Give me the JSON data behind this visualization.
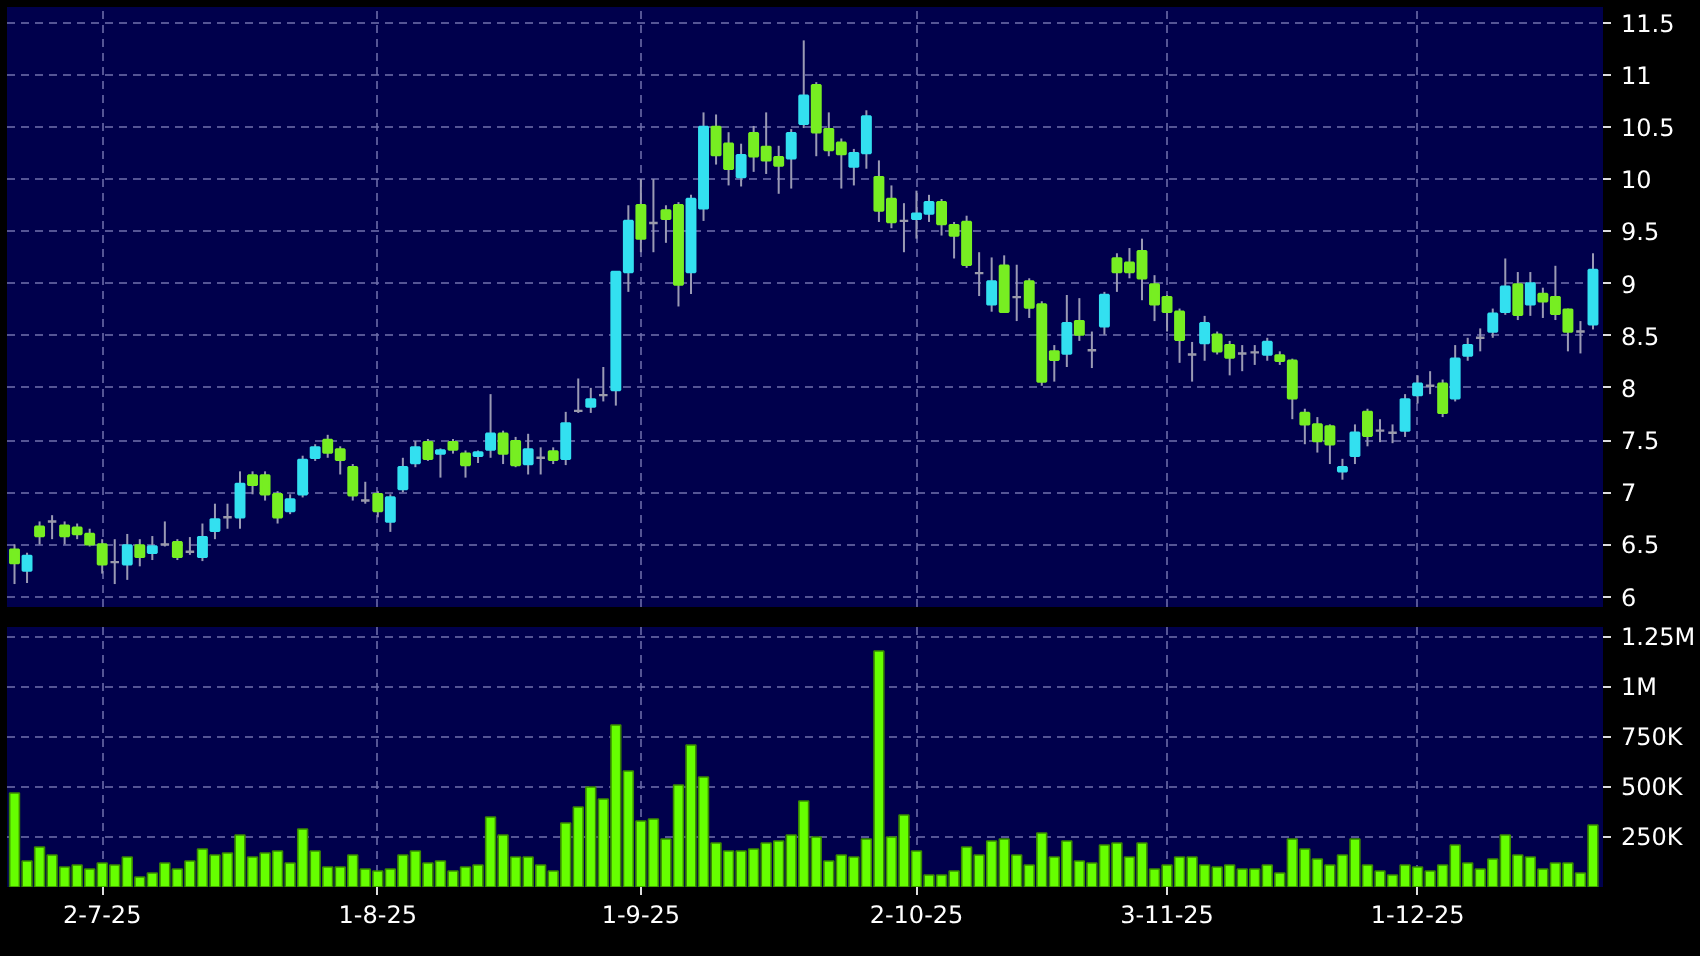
{
  "chart_data": [
    {
      "type": "candlestick",
      "categories": [
        null,
        null,
        null,
        null,
        null,
        null,
        null,
        null,
        null,
        null,
        null,
        null,
        null,
        null,
        null,
        null,
        null,
        null,
        null,
        null,
        null,
        null,
        null,
        null,
        null,
        null,
        null,
        null,
        null,
        null,
        null,
        null,
        null,
        null,
        null,
        null,
        null,
        null,
        null,
        null,
        null,
        null,
        null,
        null,
        null,
        null,
        null,
        null,
        null,
        null,
        null,
        null,
        null,
        null,
        null,
        null,
        null,
        null,
        null,
        null,
        null,
        null,
        null,
        null,
        null,
        null,
        null,
        null,
        null,
        null,
        null,
        null,
        null,
        null,
        null,
        null,
        null,
        null,
        null,
        null,
        null,
        null,
        null,
        null,
        null,
        null,
        null,
        null,
        null,
        null,
        null,
        null,
        null,
        null,
        null,
        null,
        null,
        null,
        null,
        null,
        null,
        null,
        null,
        null,
        null,
        null,
        null,
        null,
        null,
        null,
        null,
        null,
        null,
        null,
        null,
        null,
        null,
        null,
        null,
        null,
        null,
        null,
        null,
        null,
        null,
        null,
        null
      ],
      "ohlc": [
        [
          6.45,
          6.5,
          6.12,
          6.32
        ],
        [
          6.25,
          6.42,
          6.13,
          6.39
        ],
        [
          6.67,
          6.72,
          6.5,
          6.58
        ],
        [
          6.72,
          6.78,
          6.55,
          6.72
        ],
        [
          6.68,
          6.72,
          6.5,
          6.58
        ],
        [
          6.66,
          6.7,
          6.55,
          6.6
        ],
        [
          6.6,
          6.65,
          6.48,
          6.5
        ],
        [
          6.5,
          6.55,
          6.22,
          6.31
        ],
        [
          6.33,
          6.55,
          6.12,
          6.33
        ],
        [
          6.31,
          6.6,
          6.16,
          6.49
        ],
        [
          6.49,
          6.55,
          6.29,
          6.38
        ],
        [
          6.42,
          6.58,
          6.35,
          6.48
        ],
        [
          6.5,
          6.72,
          6.48,
          6.5
        ],
        [
          6.52,
          6.55,
          6.35,
          6.38
        ],
        [
          6.43,
          6.57,
          6.4,
          6.43
        ],
        [
          6.38,
          6.7,
          6.34,
          6.57
        ],
        [
          6.63,
          6.89,
          6.55,
          6.74
        ],
        [
          6.76,
          6.89,
          6.65,
          6.76
        ],
        [
          6.76,
          7.2,
          6.65,
          7.08
        ],
        [
          7.16,
          7.2,
          6.98,
          7.07
        ],
        [
          7.16,
          7.2,
          6.92,
          6.98
        ],
        [
          6.98,
          7.01,
          6.7,
          6.76
        ],
        [
          6.82,
          6.98,
          6.79,
          6.93
        ],
        [
          6.98,
          7.35,
          6.95,
          7.31
        ],
        [
          7.33,
          7.46,
          7.3,
          7.43
        ],
        [
          7.5,
          7.55,
          7.33,
          7.38
        ],
        [
          7.41,
          7.44,
          7.17,
          7.31
        ],
        [
          7.24,
          7.27,
          6.92,
          6.97
        ],
        [
          6.92,
          7.1,
          6.89,
          6.92
        ],
        [
          6.98,
          7.01,
          6.76,
          6.82
        ],
        [
          6.72,
          6.98,
          6.62,
          6.95
        ],
        [
          7.03,
          7.33,
          7.0,
          7.24
        ],
        [
          7.28,
          7.49,
          7.24,
          7.43
        ],
        [
          7.48,
          7.51,
          7.3,
          7.32
        ],
        [
          7.37,
          7.42,
          7.14,
          7.4
        ],
        [
          7.48,
          7.51,
          7.37,
          7.41
        ],
        [
          7.37,
          7.4,
          7.14,
          7.26
        ],
        [
          7.35,
          7.4,
          7.28,
          7.38
        ],
        [
          7.41,
          7.94,
          7.33,
          7.56
        ],
        [
          7.56,
          7.59,
          7.27,
          7.37
        ],
        [
          7.49,
          7.53,
          7.24,
          7.26
        ],
        [
          7.27,
          7.56,
          7.17,
          7.41
        ],
        [
          7.33,
          7.43,
          7.17,
          7.33
        ],
        [
          7.39,
          7.43,
          7.27,
          7.31
        ],
        [
          7.32,
          7.77,
          7.26,
          7.66
        ],
        [
          7.78,
          8.09,
          7.76,
          7.78
        ],
        [
          7.82,
          8.0,
          7.76,
          7.89
        ],
        [
          7.93,
          8.2,
          7.87,
          7.93
        ],
        [
          7.98,
          9.12,
          7.83,
          9.11
        ],
        [
          9.11,
          9.75,
          8.92,
          9.6
        ],
        [
          9.75,
          10.0,
          9.3,
          9.43
        ],
        [
          9.58,
          10.0,
          9.3,
          9.58
        ],
        [
          9.7,
          9.75,
          9.39,
          9.62
        ],
        [
          9.75,
          9.78,
          8.78,
          8.99
        ],
        [
          9.11,
          9.85,
          8.9,
          9.81
        ],
        [
          9.72,
          10.64,
          9.6,
          10.5
        ],
        [
          10.5,
          10.62,
          10.14,
          10.23
        ],
        [
          10.34,
          10.45,
          9.94,
          10.1
        ],
        [
          10.02,
          10.34,
          9.93,
          10.23
        ],
        [
          10.44,
          10.51,
          10.07,
          10.22
        ],
        [
          10.31,
          10.64,
          10.05,
          10.18
        ],
        [
          10.21,
          10.32,
          9.86,
          10.13
        ],
        [
          10.2,
          10.48,
          9.91,
          10.44
        ],
        [
          10.53,
          11.33,
          10.49,
          10.8
        ],
        [
          10.9,
          10.93,
          10.22,
          10.45
        ],
        [
          10.48,
          10.64,
          10.22,
          10.28
        ],
        [
          10.35,
          10.39,
          9.91,
          10.24
        ],
        [
          10.12,
          10.29,
          9.94,
          10.25
        ],
        [
          10.25,
          10.66,
          10.1,
          10.6
        ],
        [
          10.02,
          10.18,
          9.59,
          9.7
        ],
        [
          9.81,
          9.94,
          9.53,
          9.59
        ],
        [
          9.6,
          9.77,
          9.3,
          9.6
        ],
        [
          9.62,
          9.89,
          9.43,
          9.67
        ],
        [
          9.67,
          9.85,
          9.59,
          9.78
        ],
        [
          9.78,
          9.81,
          9.46,
          9.57
        ],
        [
          9.56,
          9.59,
          9.24,
          9.46
        ],
        [
          9.59,
          9.65,
          9.15,
          9.18
        ],
        [
          9.1,
          9.3,
          8.88,
          9.1
        ],
        [
          8.8,
          9.25,
          8.73,
          9.02
        ],
        [
          9.17,
          9.27,
          8.72,
          8.73
        ],
        [
          8.87,
          9.18,
          8.64,
          8.87
        ],
        [
          9.02,
          9.05,
          8.67,
          8.77
        ],
        [
          8.8,
          8.83,
          8.02,
          8.06
        ],
        [
          8.35,
          8.41,
          8.06,
          8.27
        ],
        [
          8.33,
          8.89,
          8.2,
          8.62
        ],
        [
          8.64,
          8.86,
          8.45,
          8.51
        ],
        [
          8.36,
          8.54,
          8.19,
          8.36
        ],
        [
          8.59,
          8.92,
          8.51,
          8.89
        ],
        [
          9.24,
          9.29,
          8.92,
          9.11
        ],
        [
          9.2,
          9.34,
          9.05,
          9.11
        ],
        [
          9.31,
          9.43,
          8.84,
          9.05
        ],
        [
          8.99,
          9.08,
          8.64,
          8.8
        ],
        [
          8.87,
          8.89,
          8.54,
          8.73
        ],
        [
          8.73,
          8.76,
          8.24,
          8.46
        ],
        [
          8.32,
          8.44,
          8.06,
          8.32
        ],
        [
          8.43,
          8.69,
          8.26,
          8.62
        ],
        [
          8.51,
          8.54,
          8.32,
          8.35
        ],
        [
          8.41,
          8.45,
          8.12,
          8.29
        ],
        [
          8.33,
          8.41,
          8.16,
          8.33
        ],
        [
          8.34,
          8.41,
          8.22,
          8.34
        ],
        [
          8.32,
          8.48,
          8.26,
          8.44
        ],
        [
          8.31,
          8.35,
          8.22,
          8.26
        ],
        [
          8.26,
          8.28,
          7.7,
          7.9
        ],
        [
          7.76,
          7.8,
          7.46,
          7.65
        ],
        [
          7.65,
          7.72,
          7.38,
          7.49
        ],
        [
          7.63,
          7.65,
          7.27,
          7.46
        ],
        [
          7.2,
          7.32,
          7.12,
          7.24
        ],
        [
          7.35,
          7.65,
          7.27,
          7.57
        ],
        [
          7.77,
          7.8,
          7.44,
          7.54
        ],
        [
          7.59,
          7.7,
          7.48,
          7.59
        ],
        [
          7.57,
          7.65,
          7.47,
          7.57
        ],
        [
          7.59,
          7.94,
          7.53,
          7.89
        ],
        [
          7.93,
          8.12,
          7.85,
          8.04
        ],
        [
          8.02,
          8.16,
          7.94,
          8.02
        ],
        [
          8.04,
          8.08,
          7.72,
          7.76
        ],
        [
          7.9,
          8.41,
          7.87,
          8.28
        ],
        [
          8.31,
          8.48,
          8.26,
          8.41
        ],
        [
          8.48,
          8.57,
          8.35,
          8.48
        ],
        [
          8.54,
          8.76,
          8.48,
          8.71
        ],
        [
          8.73,
          9.24,
          8.7,
          8.97
        ],
        [
          8.99,
          9.11,
          8.65,
          8.7
        ],
        [
          8.8,
          9.11,
          8.69,
          9.0
        ],
        [
          8.9,
          8.96,
          8.67,
          8.83
        ],
        [
          8.87,
          9.17,
          8.65,
          8.71
        ],
        [
          8.75,
          8.76,
          8.35,
          8.54
        ],
        [
          8.54,
          8.64,
          8.33,
          8.54
        ],
        [
          8.61,
          9.29,
          8.56,
          9.13
        ]
      ],
      "colors": [
        "#77ee22",
        "#33e0f0",
        "#77ee22",
        "#9a9aaa",
        "#77ee22",
        "#77ee22",
        "#77ee22",
        "#77ee22",
        "#9a9aaa",
        "#33e0f0",
        "#77ee22",
        "#33e0f0",
        "#9a9aaa",
        "#77ee22",
        "#9a9aaa",
        "#33e0f0",
        "#33e0f0",
        "#9a9aaa",
        "#33e0f0",
        "#77ee22",
        "#77ee22",
        "#77ee22",
        "#33e0f0",
        "#33e0f0",
        "#33e0f0",
        "#77ee22",
        "#77ee22",
        "#77ee22",
        "#9a9aaa",
        "#77ee22",
        "#33e0f0",
        "#33e0f0",
        "#33e0f0",
        "#77ee22",
        "#33e0f0",
        "#77ee22",
        "#77ee22",
        "#33e0f0",
        "#33e0f0",
        "#77ee22",
        "#77ee22",
        "#33e0f0",
        "#9a9aaa",
        "#77ee22",
        "#33e0f0",
        "#9a9aaa",
        "#33e0f0",
        "#9a9aaa",
        "#33e0f0",
        "#33e0f0",
        "#77ee22",
        "#9a9aaa",
        "#77ee22",
        "#77ee22",
        "#33e0f0",
        "#33e0f0",
        "#77ee22",
        "#77ee22",
        "#33e0f0",
        "#77ee22",
        "#77ee22",
        "#77ee22",
        "#33e0f0",
        "#33e0f0",
        "#77ee22",
        "#77ee22",
        "#77ee22",
        "#33e0f0",
        "#33e0f0",
        "#77ee22",
        "#77ee22",
        "#9a9aaa",
        "#33e0f0",
        "#33e0f0",
        "#77ee22",
        "#77ee22",
        "#77ee22",
        "#9a9aaa",
        "#33e0f0",
        "#77ee22",
        "#9a9aaa",
        "#77ee22",
        "#77ee22",
        "#77ee22",
        "#33e0f0",
        "#77ee22",
        "#9a9aaa",
        "#33e0f0",
        "#77ee22",
        "#77ee22",
        "#77ee22",
        "#77ee22",
        "#77ee22",
        "#77ee22",
        "#9a9aaa",
        "#33e0f0",
        "#77ee22",
        "#77ee22",
        "#9a9aaa",
        "#9a9aaa",
        "#33e0f0",
        "#77ee22",
        "#77ee22",
        "#77ee22",
        "#77ee22",
        "#77ee22",
        "#33e0f0",
        "#33e0f0",
        "#77ee22",
        "#9a9aaa",
        "#9a9aaa",
        "#33e0f0",
        "#33e0f0",
        "#9a9aaa",
        "#77ee22",
        "#33e0f0",
        "#33e0f0",
        "#9a9aaa",
        "#33e0f0",
        "#33e0f0",
        "#77ee22",
        "#33e0f0",
        "#77ee22",
        "#77ee22",
        "#77ee22",
        "#9a9aaa",
        "#33e0f0"
      ],
      "ylim": [
        5.9,
        11.65
      ],
      "yticks": [
        6,
        6.5,
        7,
        7.5,
        8,
        8.5,
        9,
        9.5,
        10,
        10.5,
        11,
        11.5
      ],
      "grid": true,
      "tick_labels": "y"
    },
    {
      "type": "bar",
      "categories": [
        null,
        null,
        null,
        null,
        null,
        null,
        null,
        "2-7-25",
        null,
        null,
        null,
        null,
        null,
        null,
        null,
        null,
        null,
        null,
        null,
        null,
        null,
        null,
        null,
        null,
        null,
        null,
        null,
        null,
        null,
        "1-8-25",
        null,
        null,
        null,
        null,
        null,
        null,
        null,
        null,
        null,
        null,
        null,
        null,
        null,
        null,
        null,
        null,
        null,
        null,
        null,
        null,
        "1-9-25",
        null,
        null,
        null,
        null,
        null,
        null,
        null,
        null,
        null,
        null,
        null,
        null,
        null,
        null,
        null,
        null,
        null,
        null,
        null,
        null,
        null,
        "2-10-25",
        null,
        null,
        null,
        null,
        null,
        null,
        null,
        null,
        null,
        null,
        null,
        null,
        null,
        null,
        null,
        null,
        null,
        null,
        null,
        "3-11-25",
        null,
        null,
        null,
        null,
        null,
        null,
        null,
        null,
        null,
        null,
        null,
        null,
        null,
        null,
        null,
        null,
        null,
        null,
        null,
        "1-12-25",
        null,
        null,
        null,
        null,
        null,
        null,
        null,
        null,
        null,
        null,
        null,
        null,
        null,
        null
      ],
      "values": [
        470000,
        130000,
        200000,
        160000,
        100000,
        110000,
        90000,
        120000,
        110000,
        150000,
        50000,
        70000,
        120000,
        90000,
        130000,
        190000,
        160000,
        170000,
        260000,
        150000,
        170000,
        180000,
        120000,
        290000,
        180000,
        100000,
        100000,
        160000,
        90000,
        80000,
        90000,
        160000,
        180000,
        120000,
        130000,
        80000,
        100000,
        110000,
        350000,
        260000,
        150000,
        150000,
        110000,
        80000,
        320000,
        400000,
        500000,
        440000,
        810000,
        580000,
        330000,
        340000,
        240000,
        510000,
        710000,
        550000,
        220000,
        180000,
        180000,
        190000,
        220000,
        230000,
        260000,
        430000,
        250000,
        130000,
        160000,
        150000,
        240000,
        1180000,
        250000,
        360000,
        180000,
        60000,
        60000,
        80000,
        200000,
        160000,
        230000,
        240000,
        160000,
        110000,
        270000,
        150000,
        230000,
        130000,
        120000,
        210000,
        220000,
        150000,
        220000,
        90000,
        110000,
        150000,
        150000,
        110000,
        100000,
        110000,
        90000,
        90000,
        110000,
        70000,
        240000,
        190000,
        140000,
        110000,
        160000,
        240000,
        110000,
        80000,
        60000,
        110000,
        100000,
        80000,
        110000,
        210000,
        120000,
        90000,
        140000,
        260000,
        160000,
        150000,
        90000,
        120000,
        120000,
        70000,
        310000
      ],
      "color": "#66ff00",
      "ylim": [
        0,
        1300000
      ],
      "yticks": [
        {
          "value": 250000,
          "label": "250K"
        },
        {
          "value": 500000,
          "label": "500K"
        },
        {
          "value": 750000,
          "label": "750K"
        },
        {
          "value": 1000000,
          "label": "1M"
        },
        {
          "value": 1250000,
          "label": "1.25M"
        }
      ],
      "grid": true
    }
  ]
}
